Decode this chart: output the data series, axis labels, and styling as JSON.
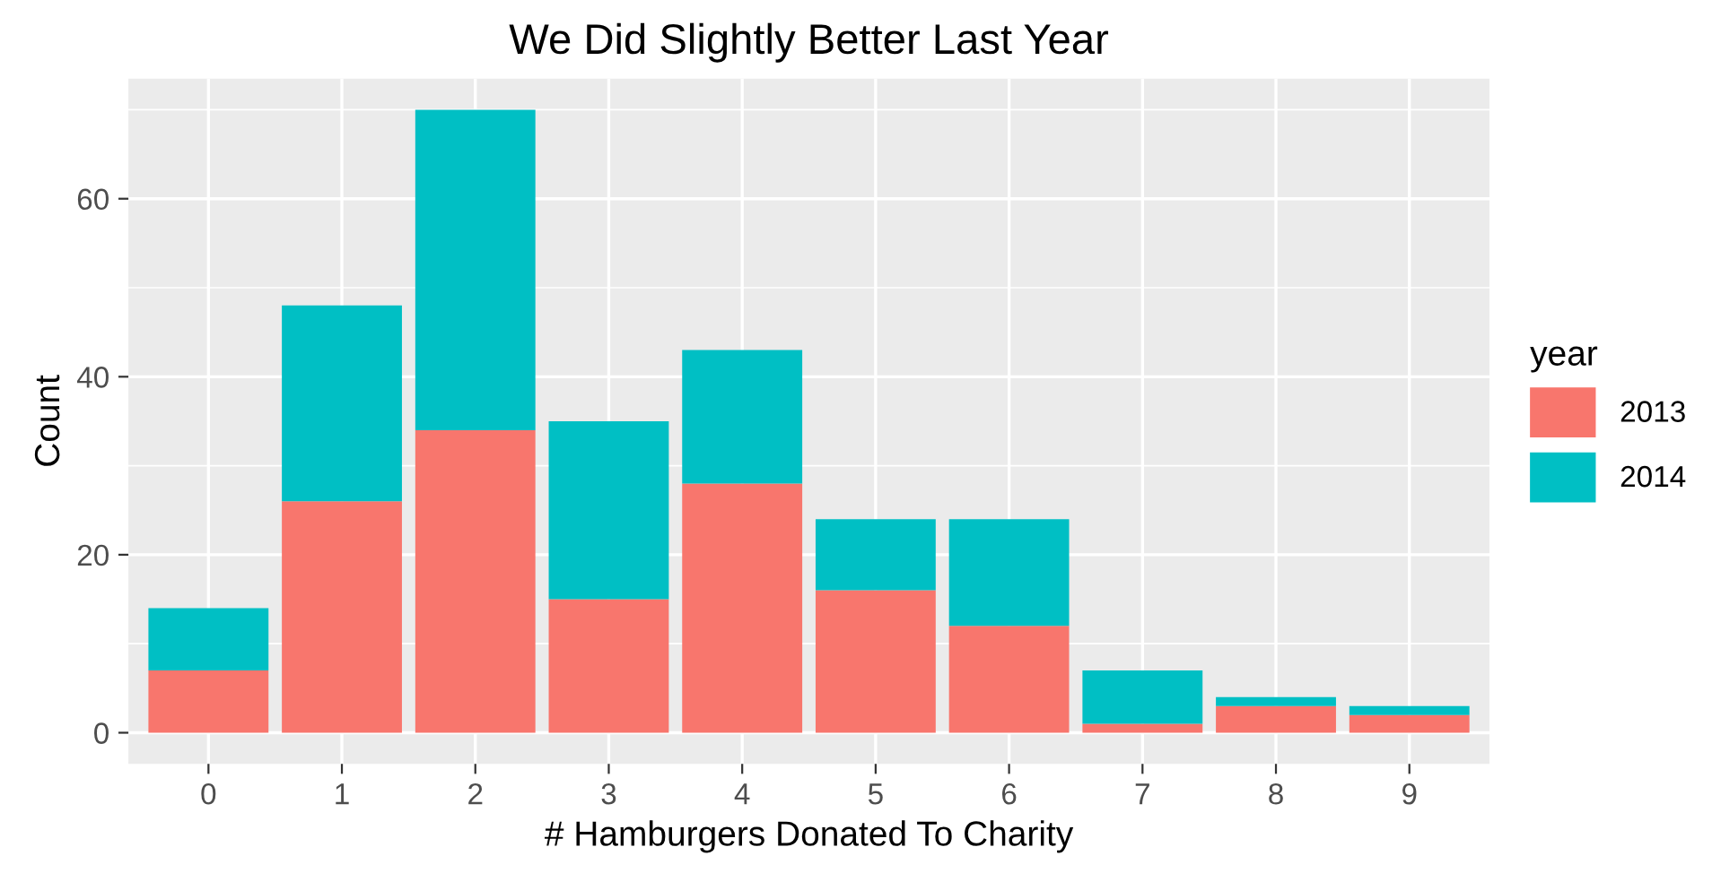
{
  "chart_data": {
    "type": "bar",
    "title": "We Did Slightly Better Last Year",
    "xlabel": "# Hamburgers Donated To Charity",
    "ylabel": "Count",
    "legend_title": "year",
    "categories": [
      "0",
      "1",
      "2",
      "3",
      "4",
      "5",
      "6",
      "7",
      "8",
      "9"
    ],
    "stacked": true,
    "series": [
      {
        "name": "2013",
        "color": "#f8766d",
        "values": [
          7,
          26,
          34,
          15,
          28,
          16,
          12,
          1,
          3,
          2
        ]
      },
      {
        "name": "2014",
        "color": "#00bfc4",
        "values": [
          7,
          22,
          36,
          20,
          15,
          8,
          12,
          6,
          1,
          1
        ]
      }
    ],
    "ylim": [
      -3.5,
      73.5
    ],
    "yticks": [
      0,
      20,
      40,
      60
    ],
    "grid": true,
    "legend": "right"
  }
}
